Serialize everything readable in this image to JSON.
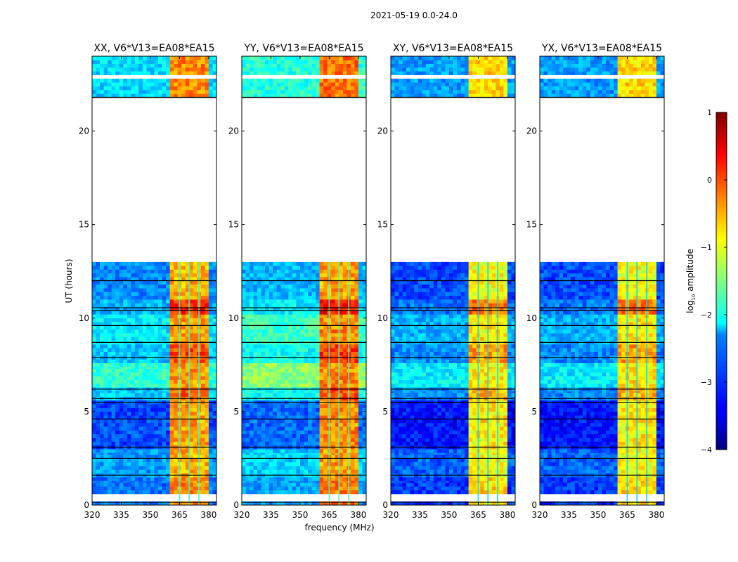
{
  "chart_data": {
    "type": "heatmap",
    "suptitle": "2021-05-19 0.0-24.0",
    "xlabel": "frequency (MHz)",
    "ylabel": "UT (hours)",
    "xlim": [
      320,
      384
    ],
    "ylim": [
      0,
      24
    ],
    "xticks": [
      "320",
      "335",
      "350",
      "365",
      "380"
    ],
    "xtick_values": [
      320,
      335,
      350,
      365,
      380
    ],
    "yticks": [
      "0",
      "5",
      "10",
      "15",
      "20"
    ],
    "ytick_values": [
      0,
      5,
      10,
      15,
      20
    ],
    "colorbar": {
      "label_main": "log",
      "label_sub": "10",
      "label_rest": " amplitude",
      "range": [
        -4,
        1
      ],
      "ticks": [
        "1",
        "0",
        "−1",
        "−2",
        "−3",
        "−4"
      ],
      "tick_values": [
        1,
        0,
        -1,
        -2,
        -3,
        -4
      ],
      "colormap": "jet"
    },
    "band_MHz": [
      360.5,
      380
    ],
    "band_lines_MHz": [
      365,
      370,
      375
    ],
    "flagged_hours": [
      [
        0.3,
        0.55
      ],
      [
        13.0,
        21.8
      ],
      [
        22.9,
        23.05
      ],
      [
        23.55,
        23.65
      ]
    ],
    "dark_lines_hours": [
      0.15,
      1.6,
      2.5,
      3.1,
      4.6,
      5.5,
      5.7,
      6.2,
      7.9,
      8.7,
      9.6,
      10.4,
      10.55,
      12.0
    ],
    "segments": [
      {
        "t": [
          0.0,
          1.5
        ],
        "bg": 0.0,
        "band": 0.3
      },
      {
        "t": [
          1.5,
          3.0
        ],
        "bg": 0.2,
        "band": 0.1
      },
      {
        "t": [
          3.0,
          5.6
        ],
        "bg": -0.2,
        "band": 0.2
      },
      {
        "t": [
          5.6,
          6.3
        ],
        "bg": 0.4,
        "band": 0.5
      },
      {
        "t": [
          6.3,
          7.6
        ],
        "bg": 0.9,
        "band": 0.2
      },
      {
        "t": [
          7.6,
          8.6
        ],
        "bg": 0.4,
        "band": 0.6
      },
      {
        "t": [
          8.6,
          10.2
        ],
        "bg": 0.6,
        "band": 0.2
      },
      {
        "t": [
          10.2,
          11.0
        ],
        "bg": 0.3,
        "band": 0.8
      },
      {
        "t": [
          11.0,
          13.0
        ],
        "bg": 0.1,
        "band": 0.1
      },
      {
        "t": [
          21.8,
          24.0
        ],
        "bg": 0.5,
        "band": 0.3
      }
    ],
    "panels": [
      {
        "title": "XX, V6*V13=EA08*EA15",
        "bg_level": -2.8,
        "band_level": -0.6
      },
      {
        "title": "YY, V6*V13=EA08*EA15",
        "bg_level": -2.6,
        "band_level": -0.5
      },
      {
        "title": "XY, V6*V13=EA08*EA15",
        "bg_level": -3.1,
        "band_level": -1.0
      },
      {
        "title": "YX, V6*V13=EA08*EA15",
        "bg_level": -3.1,
        "band_level": -1.0
      }
    ]
  }
}
